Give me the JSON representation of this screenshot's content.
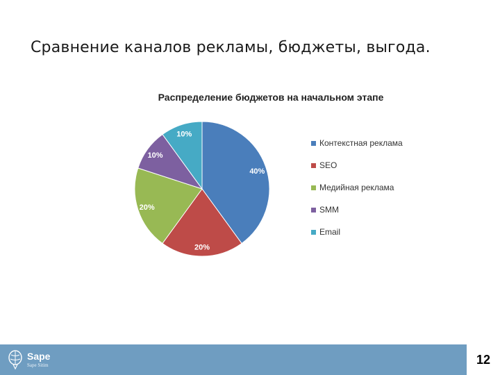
{
  "slide": {
    "title": "Сравнение каналов рекламы, бюджеты, выгода.",
    "page_number": "12"
  },
  "footer": {
    "logo_name": "Sape",
    "logo_sub": "Sape Sitim",
    "color": "#6f9dc1"
  },
  "chart_data": {
    "type": "pie",
    "title": "Распределение бюджетов на начальном этапе",
    "categories": [
      "Контекстная реклама",
      "SEO",
      "Медийная реклама",
      "SMM",
      "Email"
    ],
    "values": [
      40,
      20,
      20,
      10,
      10
    ],
    "labels": [
      "40%",
      "20%",
      "20%",
      "10%",
      "10%"
    ],
    "colors": [
      "#4a7ebb",
      "#be4b48",
      "#98b954",
      "#7d60a0",
      "#46aac5"
    ],
    "start_angle_deg": 0,
    "direction": "clockwise",
    "legend_position": "right"
  }
}
